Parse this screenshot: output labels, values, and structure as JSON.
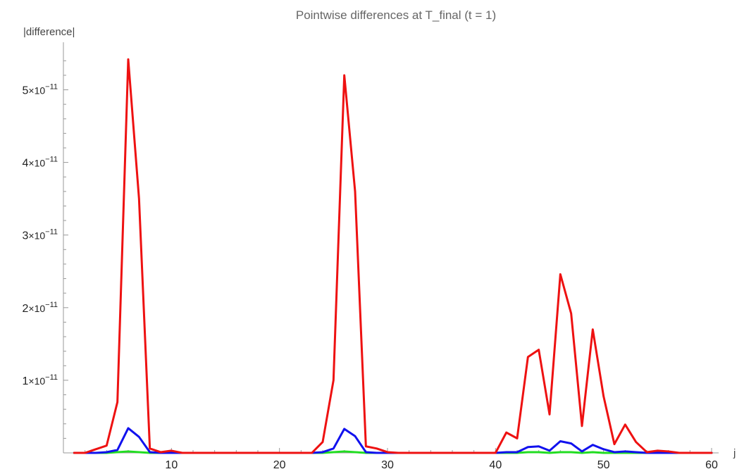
{
  "chart_data": {
    "type": "line",
    "title": "Pointwise differences at T_final (t = 1)",
    "xlabel": "j",
    "ylabel": "|difference|",
    "xlim": [
      0,
      60
    ],
    "ylim": [
      0,
      5.5e-11
    ],
    "xticks": [
      10,
      20,
      30,
      40,
      50,
      60
    ],
    "xtick_labels": [
      "10",
      "20",
      "30",
      "40",
      "50",
      "60"
    ],
    "yticks": [
      1e-11,
      2e-11,
      3e-11,
      4e-11,
      5e-11
    ],
    "ytick_mantissa": [
      "1",
      "2",
      "3",
      "4",
      "5"
    ],
    "ytick_base": "×10",
    "ytick_exponent": "−11",
    "grid": false,
    "legend": "none",
    "x": [
      1,
      2,
      3,
      4,
      5,
      6,
      7,
      8,
      9,
      10,
      11,
      12,
      13,
      14,
      15,
      16,
      17,
      18,
      19,
      20,
      21,
      22,
      23,
      24,
      25,
      26,
      27,
      28,
      29,
      30,
      31,
      32,
      33,
      34,
      35,
      36,
      37,
      38,
      39,
      40,
      41,
      42,
      43,
      44,
      45,
      46,
      47,
      48,
      49,
      50,
      51,
      52,
      53,
      54,
      55,
      56,
      57,
      58,
      59,
      60
    ],
    "series": [
      {
        "color": "#ee1111",
        "values": [
          0,
          0,
          5e-13,
          1e-12,
          7e-12,
          5.42e-11,
          3.5e-11,
          6e-13,
          1e-13,
          3e-13,
          0,
          0,
          0,
          0,
          0,
          0,
          0,
          0,
          0,
          0,
          0,
          0,
          0,
          1.5e-12,
          1e-11,
          5.2e-11,
          3.6e-11,
          9e-13,
          6e-13,
          1e-13,
          0,
          0,
          0,
          0,
          0,
          0,
          0,
          0,
          0,
          0,
          2.8e-12,
          2e-12,
          1.32e-11,
          1.42e-11,
          5.3e-12,
          2.46e-11,
          1.92e-11,
          3.7e-12,
          1.7e-11,
          7.8e-12,
          1.2e-12,
          3.9e-12,
          1.5e-12,
          1e-13,
          3e-13,
          2e-13,
          0,
          0,
          0,
          0
        ]
      },
      {
        "color": "#1111ee",
        "values": [
          0,
          0,
          0,
          1e-13,
          4e-13,
          3.4e-12,
          2.2e-12,
          1e-13,
          0,
          0,
          0,
          0,
          0,
          0,
          0,
          0,
          0,
          0,
          0,
          0,
          0,
          0,
          0,
          1e-13,
          6e-13,
          3.3e-12,
          2.3e-12,
          1e-13,
          0,
          0,
          0,
          0,
          0,
          0,
          0,
          0,
          0,
          0,
          0,
          0,
          1e-13,
          1e-13,
          8e-13,
          9e-13,
          3e-13,
          1.6e-12,
          1.3e-12,
          2e-13,
          1.1e-12,
          5e-13,
          1e-13,
          2e-13,
          1e-13,
          0,
          0,
          0,
          0,
          0,
          0,
          0
        ]
      },
      {
        "color": "#22dd22",
        "values": [
          0,
          0,
          0,
          0,
          1e-13,
          2e-13,
          1e-13,
          0,
          0,
          0,
          0,
          0,
          0,
          0,
          0,
          0,
          0,
          0,
          0,
          0,
          0,
          0,
          0,
          0,
          1e-13,
          2e-13,
          1e-13,
          0,
          0,
          0,
          0,
          0,
          0,
          0,
          0,
          0,
          0,
          0,
          0,
          0,
          0,
          0,
          1e-13,
          1e-13,
          0,
          1e-13,
          1e-13,
          0,
          1e-13,
          0,
          0,
          0,
          0,
          0,
          0,
          0,
          0,
          0,
          0,
          0
        ]
      }
    ]
  }
}
